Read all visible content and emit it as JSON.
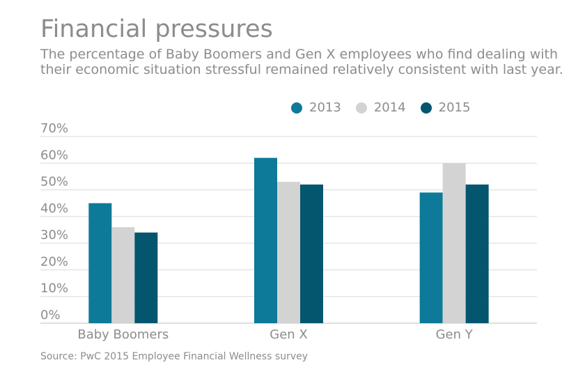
{
  "chart_data": {
    "type": "bar",
    "title": "Financial pressures",
    "subtitle": "The percentage of Baby Boomers and Gen X employees who find dealing with their economic situation stressful remained relatively consistent with last year.",
    "categories": [
      "Baby Boomers",
      "Gen X",
      "Gen Y"
    ],
    "series": [
      {
        "name": "2013",
        "values": [
          45,
          62,
          49
        ],
        "color": "#0e7a99"
      },
      {
        "name": "2014",
        "values": [
          36,
          53,
          60
        ],
        "color": "#d4d3d3"
      },
      {
        "name": "2015",
        "values": [
          34,
          52,
          52
        ],
        "color": "#04566f"
      }
    ],
    "ylim": [
      0,
      70
    ],
    "yticks": [
      0,
      10,
      20,
      30,
      40,
      50,
      60,
      70
    ],
    "ytick_labels": [
      "0%",
      "10%",
      "20%",
      "30%",
      "40%",
      "50%",
      "60%",
      "70%"
    ],
    "xlabel": "",
    "ylabel": "",
    "grid": true,
    "legend_position": "top-right",
    "source": "Source: PwC 2015 Employee Financial Wellness survey"
  },
  "colors": {
    "text": "#8c8c8c",
    "grid": "#d9d9d9",
    "axis": "#bfbfbf"
  }
}
